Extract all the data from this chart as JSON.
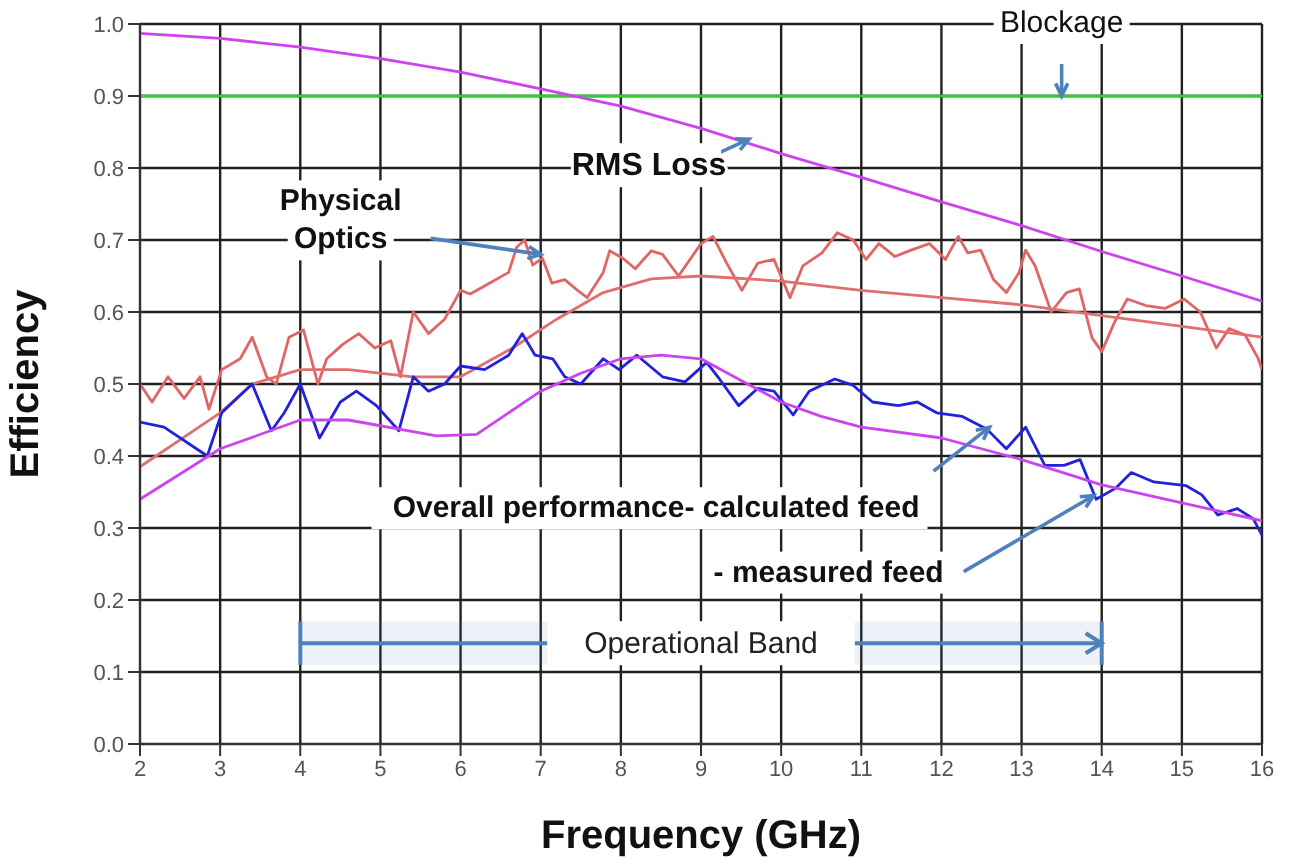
{
  "chart_data": {
    "type": "line",
    "xlabel": "Frequency (GHz)",
    "ylabel": "Efficiency",
    "xlim": [
      2,
      16
    ],
    "xticks": [
      2,
      3,
      4,
      5,
      6,
      7,
      8,
      9,
      10,
      11,
      12,
      13,
      14,
      15,
      16
    ],
    "ylim": [
      0,
      1
    ],
    "yticks": [
      {
        "value": 0,
        "label": "0.0"
      },
      0.1,
      0.2,
      0.3,
      0.4,
      0.5,
      0.6,
      0.7,
      0.8,
      0.9,
      {
        "value": 1,
        "label": "1.0"
      }
    ],
    "grid": true,
    "marker": "none",
    "line_style": "solid",
    "series": [
      {
        "color": "#33cc33",
        "x": [
          2,
          16
        ],
        "values": [
          0.9,
          0.9
        ]
      },
      {
        "color": "#cc44ee",
        "x": [
          2,
          3,
          4,
          5,
          6,
          7,
          8,
          9,
          10,
          11,
          12,
          13,
          14,
          15,
          16
        ],
        "values": [
          0.987,
          0.98,
          0.968,
          0.952,
          0.933,
          0.91,
          0.886,
          0.855,
          0.82,
          0.787,
          0.753,
          0.72,
          0.684,
          0.65,
          0.615
        ]
      },
      {
        "color": "#e06666",
        "x": [
          2,
          2.15,
          2.35,
          2.55,
          2.75,
          2.86,
          3.02,
          3.25,
          3.4,
          3.58,
          3.7,
          3.86,
          4.04,
          4.22,
          4.33,
          4.53,
          4.73,
          4.93,
          5.13,
          5.25,
          5.41,
          5.6,
          5.8,
          6.0,
          6.12,
          6.36,
          6.6,
          6.7,
          6.8,
          6.9,
          7.02,
          7.14,
          7.3,
          7.46,
          7.58,
          7.78,
          7.86,
          8.02,
          8.18,
          8.38,
          8.52,
          8.72,
          9.0,
          9.15,
          9.31,
          9.51,
          9.71,
          9.91,
          10.11,
          10.27,
          10.51,
          10.7,
          10.9,
          11.06,
          11.22,
          11.42,
          11.62,
          11.85,
          12.05,
          12.21,
          12.33,
          12.49,
          12.65,
          12.81,
          12.97,
          13.05,
          13.17,
          13.37,
          13.56,
          13.72,
          13.88,
          14.0,
          14.16,
          14.32,
          14.55,
          14.79,
          15.03,
          15.23,
          15.43,
          15.59,
          15.79,
          15.95,
          16
        ],
        "values": [
          0.5,
          0.475,
          0.51,
          0.48,
          0.51,
          0.465,
          0.52,
          0.535,
          0.565,
          0.51,
          0.5,
          0.565,
          0.575,
          0.5,
          0.535,
          0.555,
          0.57,
          0.55,
          0.56,
          0.51,
          0.6,
          0.57,
          0.59,
          0.63,
          0.625,
          0.64,
          0.655,
          0.69,
          0.7,
          0.665,
          0.675,
          0.64,
          0.645,
          0.63,
          0.62,
          0.655,
          0.685,
          0.675,
          0.66,
          0.685,
          0.68,
          0.65,
          0.695,
          0.705,
          0.67,
          0.63,
          0.668,
          0.673,
          0.62,
          0.664,
          0.682,
          0.71,
          0.7,
          0.673,
          0.695,
          0.677,
          0.686,
          0.695,
          0.673,
          0.705,
          0.682,
          0.686,
          0.645,
          0.627,
          0.655,
          0.686,
          0.664,
          0.6,
          0.627,
          0.632,
          0.564,
          0.545,
          0.586,
          0.618,
          0.609,
          0.605,
          0.618,
          0.6,
          0.55,
          0.577,
          0.568,
          0.536,
          0.52
        ]
      },
      {
        "color": "#e07070",
        "x": [
          2,
          3,
          3.4,
          4,
          4.6,
          5.4,
          6,
          6.65,
          7.2,
          7.78,
          8.38,
          9,
          10,
          11,
          12,
          13,
          14,
          15,
          16
        ],
        "values": [
          0.385,
          0.46,
          0.5,
          0.52,
          0.52,
          0.51,
          0.51,
          0.55,
          0.59,
          0.627,
          0.646,
          0.65,
          0.643,
          0.63,
          0.62,
          0.61,
          0.595,
          0.58,
          0.565
        ]
      },
      {
        "color": "#2222dd",
        "x": [
          2,
          2.3,
          2.84,
          3.02,
          3.4,
          3.64,
          3.8,
          4.0,
          4.24,
          4.5,
          4.7,
          4.95,
          5.23,
          5.41,
          5.6,
          5.8,
          6.0,
          6.3,
          6.6,
          6.77,
          6.93,
          7.15,
          7.3,
          7.5,
          7.78,
          7.98,
          8.2,
          8.52,
          8.8,
          9.07,
          9.23,
          9.47,
          9.71,
          9.91,
          10.15,
          10.35,
          10.67,
          10.9,
          11.14,
          11.46,
          11.7,
          11.94,
          12.26,
          12.57,
          12.81,
          13.05,
          13.29,
          13.53,
          13.73,
          13.93,
          14.17,
          14.37,
          14.65,
          15.05,
          15.25,
          15.45,
          15.69,
          15.89,
          16
        ],
        "values": [
          0.447,
          0.44,
          0.4,
          0.46,
          0.5,
          0.435,
          0.46,
          0.5,
          0.425,
          0.475,
          0.49,
          0.47,
          0.435,
          0.51,
          0.49,
          0.5,
          0.525,
          0.52,
          0.54,
          0.57,
          0.54,
          0.535,
          0.51,
          0.5,
          0.535,
          0.52,
          0.54,
          0.51,
          0.503,
          0.53,
          0.507,
          0.47,
          0.494,
          0.49,
          0.457,
          0.49,
          0.507,
          0.498,
          0.475,
          0.47,
          0.475,
          0.46,
          0.455,
          0.437,
          0.41,
          0.44,
          0.387,
          0.387,
          0.395,
          0.34,
          0.355,
          0.377,
          0.364,
          0.359,
          0.346,
          0.318,
          0.327,
          0.313,
          0.29
        ]
      },
      {
        "color": "#cc44ee",
        "x": [
          2,
          3,
          4,
          4.6,
          5.7,
          6.2,
          7,
          7.5,
          8,
          8.5,
          9,
          9.5,
          10,
          10.5,
          11,
          12,
          13,
          14,
          15,
          16
        ],
        "values": [
          0.34,
          0.41,
          0.45,
          0.45,
          0.428,
          0.43,
          0.49,
          0.515,
          0.535,
          0.54,
          0.535,
          0.505,
          0.475,
          0.455,
          0.44,
          0.425,
          0.395,
          0.36,
          0.335,
          0.31
        ]
      }
    ],
    "bands": [
      {
        "axis": "x",
        "from": 4,
        "to": 14,
        "label": "Operational Band",
        "color": "#4f81bd"
      }
    ],
    "annotations": [
      {
        "text": "Blockage",
        "x": 13.5,
        "y": 0.9
      },
      {
        "text": "RMS Loss",
        "x": 9.6,
        "y": 0.84
      },
      {
        "text": "Physical Optics",
        "x": 7.0,
        "y": 0.68
      },
      {
        "text": "Overall performance- calculated feed",
        "x": 12.6,
        "y": 0.44
      },
      {
        "text": "- measured feed",
        "x": 13.9,
        "y": 0.345
      }
    ]
  }
}
